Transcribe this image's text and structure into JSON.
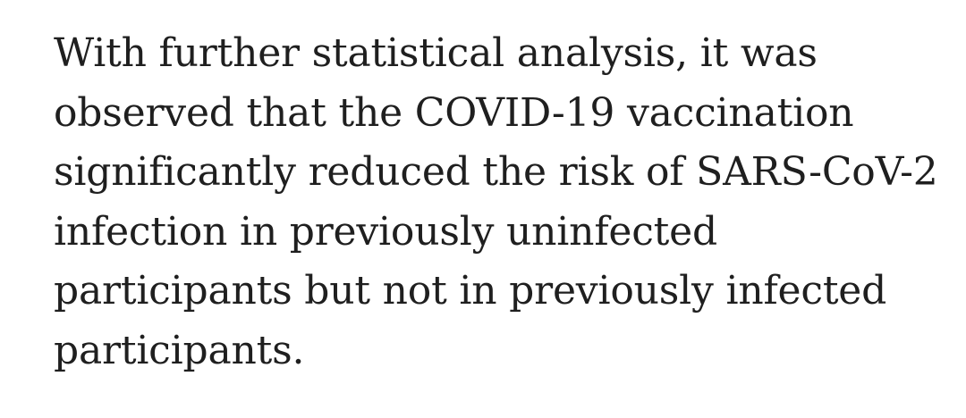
{
  "paragraph": {
    "lines": [
      "With further statistical analysis, it was",
      "observed that the COVID-19 vaccination",
      "significantly reduced the risk of SARS-CoV-2",
      "infection in previously uninfected",
      "participants but not in previously infected",
      "participants."
    ]
  }
}
